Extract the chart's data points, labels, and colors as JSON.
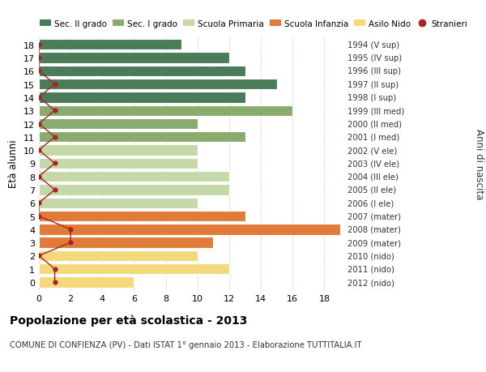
{
  "ages": [
    18,
    17,
    16,
    15,
    14,
    13,
    12,
    11,
    10,
    9,
    8,
    7,
    6,
    5,
    4,
    3,
    2,
    1,
    0
  ],
  "bar_values": [
    9,
    12,
    13,
    15,
    13,
    16,
    10,
    13,
    10,
    10,
    12,
    12,
    10,
    13,
    19,
    11,
    10,
    12,
    6
  ],
  "bar_colors": [
    "#4a7c59",
    "#4a7c59",
    "#4a7c59",
    "#4a7c59",
    "#4a7c59",
    "#8aab6e",
    "#8aab6e",
    "#8aab6e",
    "#c5d9a8",
    "#c5d9a8",
    "#c5d9a8",
    "#c5d9a8",
    "#c5d9a8",
    "#e07b39",
    "#e07b39",
    "#e07b39",
    "#f5d87a",
    "#f5d87a",
    "#f5d87a"
  ],
  "stranieri_values": [
    0,
    0,
    0,
    1,
    0,
    1,
    0,
    1,
    0,
    1,
    0,
    1,
    0,
    0,
    2,
    2,
    0,
    1,
    1
  ],
  "right_labels": [
    "1994 (V sup)",
    "1995 (IV sup)",
    "1996 (III sup)",
    "1997 (II sup)",
    "1998 (I sup)",
    "1999 (III med)",
    "2000 (II med)",
    "2001 (I med)",
    "2002 (V ele)",
    "2003 (IV ele)",
    "2004 (III ele)",
    "2005 (II ele)",
    "2006 (I ele)",
    "2007 (mater)",
    "2008 (mater)",
    "2009 (mater)",
    "2010 (nido)",
    "2011 (nido)",
    "2012 (nido)"
  ],
  "legend_labels": [
    "Sec. II grado",
    "Sec. I grado",
    "Scuola Primaria",
    "Scuola Infanzia",
    "Asilo Nido",
    "Stranieri"
  ],
  "legend_colors": [
    "#4a7c59",
    "#8aab6e",
    "#c5d9a8",
    "#e07b39",
    "#f5d87a",
    "#aa2222"
  ],
  "xlabel_left": "Età alunni",
  "xlabel_right": "Anni di nascita",
  "xlim": [
    0,
    19
  ],
  "xticks": [
    0,
    2,
    4,
    6,
    8,
    10,
    12,
    14,
    16,
    18
  ],
  "title": "Popolazione per età scolastica - 2013",
  "subtitle": "COMUNE DI CONFIENZA (PV) - Dati ISTAT 1° gennaio 2013 - Elaborazione TUTTITALIA.IT",
  "bg_color": "#ffffff",
  "bar_height": 0.82
}
